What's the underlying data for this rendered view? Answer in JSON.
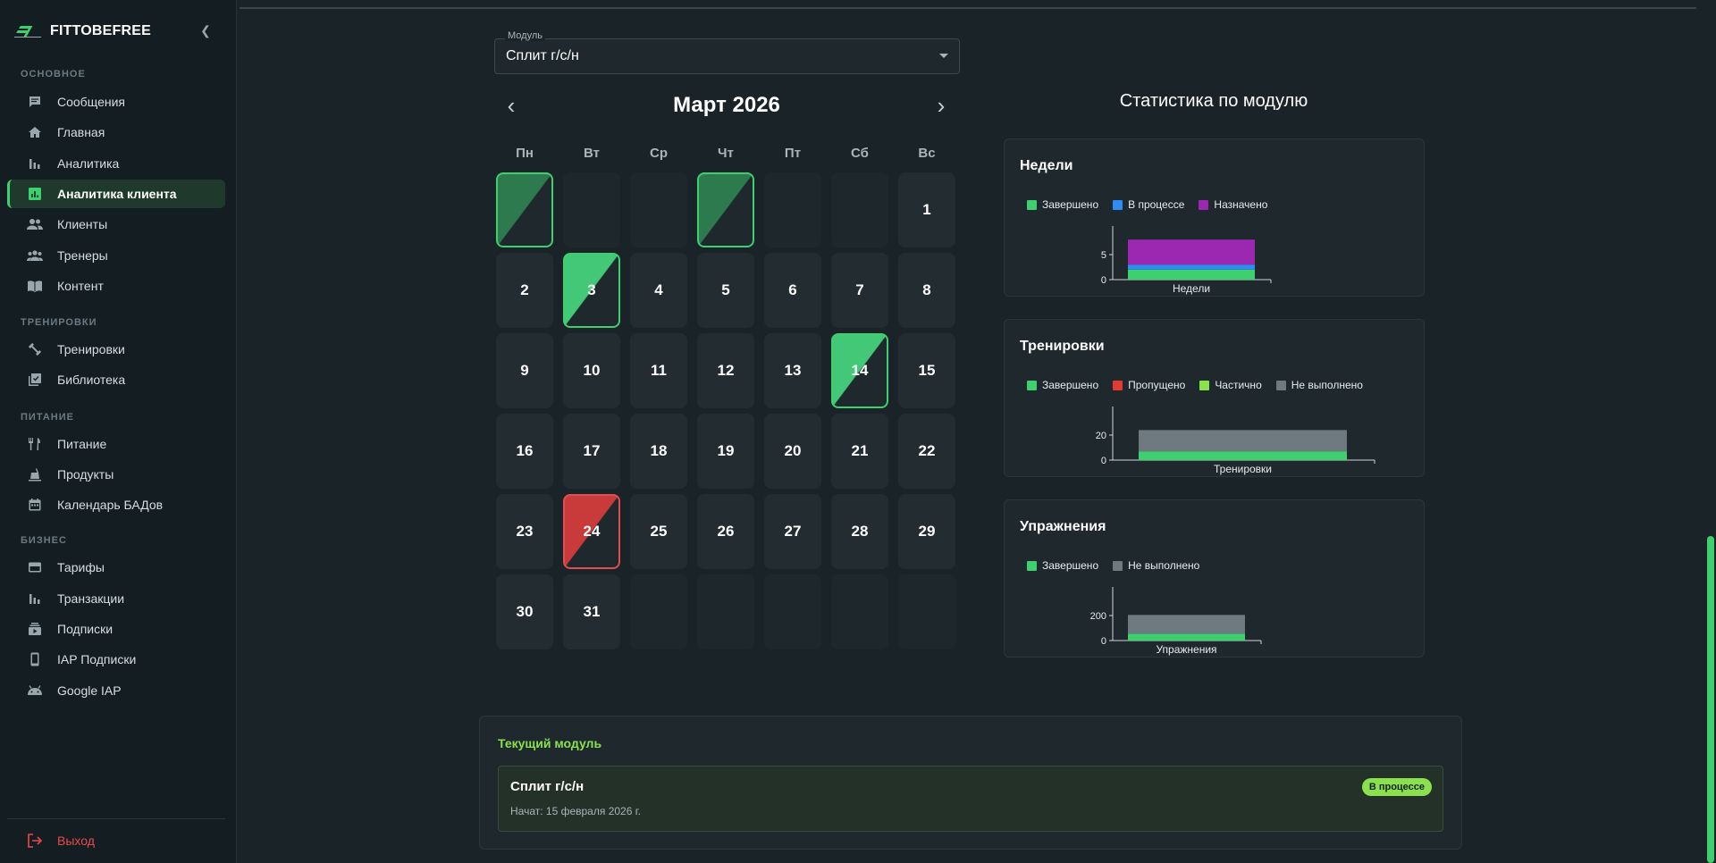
{
  "brand": {
    "name": "FITTOBEFREE",
    "collapse_icon": "chevron-left-icon"
  },
  "sidebar": {
    "sections": [
      {
        "title": "ОСНОВНОЕ"
      },
      {
        "title": "ТРЕНИРОВКИ"
      },
      {
        "title": "ПИТАНИЕ"
      },
      {
        "title": "БИЗНЕС"
      }
    ],
    "items": [
      {
        "label": "Сообщения",
        "icon": "chat-icon"
      },
      {
        "label": "Главная",
        "icon": "home-icon"
      },
      {
        "label": "Аналитика",
        "icon": "bar-chart-icon"
      },
      {
        "label": "Аналитика клиента",
        "icon": "analytics-icon",
        "active": true
      },
      {
        "label": "Клиенты",
        "icon": "people-icon"
      },
      {
        "label": "Тренеры",
        "icon": "groups-icon"
      },
      {
        "label": "Контент",
        "icon": "book-icon"
      },
      {
        "label": "Тренировки",
        "icon": "dumbbell-icon"
      },
      {
        "label": "Библиотека",
        "icon": "library-icon"
      },
      {
        "label": "Питание",
        "icon": "fork-knife-icon"
      },
      {
        "label": "Продукты",
        "icon": "products-icon"
      },
      {
        "label": "Календарь БАДов",
        "icon": "calendar-icon"
      },
      {
        "label": "Тарифы",
        "icon": "card-icon"
      },
      {
        "label": "Транзакции",
        "icon": "bar-chart-icon"
      },
      {
        "label": "Подписки",
        "icon": "subscriptions-icon"
      },
      {
        "label": "IAP Подписки",
        "icon": "phone-icon"
      },
      {
        "label": "Google IAP",
        "icon": "android-icon"
      }
    ],
    "logout": {
      "label": "Выход",
      "icon": "logout-icon"
    }
  },
  "module_select": {
    "legend": "Модуль",
    "value": "Сплит г/с/н"
  },
  "calendar": {
    "title": "Март 2026",
    "weekdays": [
      "Пн",
      "Вт",
      "Ср",
      "Чт",
      "Пт",
      "Сб",
      "Вс"
    ],
    "days": [
      {
        "label": "",
        "state": "done"
      },
      {
        "label": "",
        "state": "empty"
      },
      {
        "label": "",
        "state": "empty"
      },
      {
        "label": "",
        "state": "done"
      },
      {
        "label": "",
        "state": "empty"
      },
      {
        "label": "",
        "state": "empty"
      },
      {
        "label": "1",
        "state": ""
      },
      {
        "label": "2",
        "state": ""
      },
      {
        "label": "3",
        "state": "done-bright"
      },
      {
        "label": "4",
        "state": ""
      },
      {
        "label": "5",
        "state": ""
      },
      {
        "label": "6",
        "state": ""
      },
      {
        "label": "7",
        "state": ""
      },
      {
        "label": "8",
        "state": ""
      },
      {
        "label": "9",
        "state": ""
      },
      {
        "label": "10",
        "state": ""
      },
      {
        "label": "11",
        "state": ""
      },
      {
        "label": "12",
        "state": ""
      },
      {
        "label": "13",
        "state": ""
      },
      {
        "label": "14",
        "state": "done-bright"
      },
      {
        "label": "15",
        "state": ""
      },
      {
        "label": "16",
        "state": ""
      },
      {
        "label": "17",
        "state": ""
      },
      {
        "label": "18",
        "state": ""
      },
      {
        "label": "19",
        "state": ""
      },
      {
        "label": "20",
        "state": ""
      },
      {
        "label": "21",
        "state": ""
      },
      {
        "label": "22",
        "state": ""
      },
      {
        "label": "23",
        "state": ""
      },
      {
        "label": "24",
        "state": "missed"
      },
      {
        "label": "25",
        "state": ""
      },
      {
        "label": "26",
        "state": ""
      },
      {
        "label": "27",
        "state": ""
      },
      {
        "label": "28",
        "state": ""
      },
      {
        "label": "29",
        "state": ""
      },
      {
        "label": "30",
        "state": ""
      },
      {
        "label": "31",
        "state": ""
      },
      {
        "label": "",
        "state": "empty"
      },
      {
        "label": "",
        "state": "empty"
      },
      {
        "label": "",
        "state": "empty"
      },
      {
        "label": "",
        "state": "empty"
      },
      {
        "label": "",
        "state": "empty"
      }
    ]
  },
  "stats": {
    "title": "Статистика по модулю"
  },
  "chart_data": [
    {
      "type": "bar",
      "title": "Недели",
      "categories": [
        "Недели"
      ],
      "stacked": true,
      "series": [
        {
          "name": "Завершено",
          "color": "#3ecf6e",
          "values": [
            2
          ]
        },
        {
          "name": "В процессе",
          "color": "#2f8cf0",
          "values": [
            1
          ]
        },
        {
          "name": "Назначено",
          "color": "#9c27b0",
          "values": [
            5
          ]
        }
      ],
      "yticks": [
        "5",
        "0"
      ],
      "ylim": [
        0,
        10
      ]
    },
    {
      "type": "bar",
      "title": "Тренировки",
      "categories": [
        "Тренировки"
      ],
      "stacked": true,
      "series": [
        {
          "name": "Завершено",
          "color": "#3ecf6e",
          "values": [
            7
          ]
        },
        {
          "name": "Пропущено",
          "color": "#e53935",
          "values": [
            0
          ]
        },
        {
          "name": "Частично",
          "color": "#8be04e",
          "values": [
            0
          ]
        },
        {
          "name": "Не выполнено",
          "color": "#6f7a80",
          "values": [
            17
          ]
        }
      ],
      "yticks": [
        "20",
        "0"
      ],
      "ylim": [
        0,
        40
      ]
    },
    {
      "type": "bar",
      "title": "Упражнения",
      "categories": [
        "Упражнения"
      ],
      "stacked": true,
      "series": [
        {
          "name": "Завершено",
          "color": "#3ecf6e",
          "values": [
            55
          ]
        },
        {
          "name": "Не выполнено",
          "color": "#6f7a80",
          "values": [
            150
          ]
        }
      ],
      "yticks": [
        "200",
        "0"
      ],
      "ylim": [
        0,
        400
      ]
    }
  ],
  "current_module": {
    "title": "Текущий модуль",
    "name": "Сплит г/с/н",
    "started": "Начат: 15 февраля 2026 г.",
    "status": "В процессе"
  }
}
